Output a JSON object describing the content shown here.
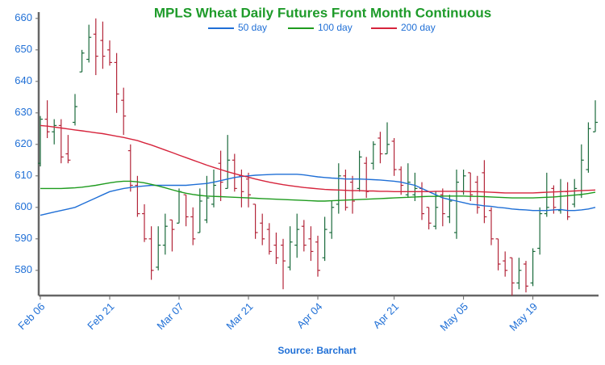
{
  "chart_data": {
    "type": "ohlc",
    "title": "MPLS Wheat Daily Futures Front Month Continuous",
    "source": "Source: Barchart",
    "legend": "top",
    "up_color": "#1b6b3c",
    "down_color": "#b3263a",
    "categories": [
      "Feb 06",
      null,
      null,
      null,
      null,
      null,
      null,
      null,
      null,
      null,
      "Feb 21",
      null,
      null,
      null,
      null,
      null,
      null,
      null,
      null,
      null,
      "Mar 07",
      null,
      null,
      null,
      null,
      null,
      null,
      null,
      null,
      null,
      "Mar 21",
      null,
      null,
      null,
      null,
      null,
      null,
      null,
      null,
      null,
      "Apr 04",
      null,
      null,
      null,
      null,
      null,
      null,
      null,
      null,
      null,
      null,
      "Apr 21",
      null,
      null,
      null,
      null,
      null,
      null,
      null,
      null,
      null,
      "May 05",
      null,
      null,
      null,
      null,
      null,
      null,
      null,
      null,
      null,
      "May 19",
      null,
      null,
      null,
      null,
      null,
      null,
      null,
      null,
      null
    ],
    "open": [
      614,
      628,
      624,
      626,
      617,
      627,
      643,
      647,
      655,
      653,
      650,
      646,
      634,
      618,
      607,
      598,
      590,
      581,
      588,
      596,
      595,
      604,
      597,
      592,
      596,
      601,
      614,
      606,
      615,
      610,
      609,
      601,
      595,
      593,
      588,
      588,
      581,
      588,
      594,
      590,
      589,
      584,
      592,
      601,
      610,
      608,
      606,
      614,
      614,
      622,
      617,
      621,
      612,
      604,
      604,
      606,
      600,
      594,
      604,
      597,
      592,
      605,
      611,
      608,
      611,
      599,
      590,
      583,
      584,
      576,
      582,
      576,
      587,
      598,
      606,
      599,
      605,
      601,
      604,
      612,
      624
    ],
    "high": [
      629,
      634,
      628,
      628,
      623,
      636,
      650,
      658,
      660,
      659,
      653,
      649,
      638,
      620,
      610,
      601,
      594,
      594,
      598,
      596,
      606,
      604,
      600,
      606,
      610,
      612,
      618,
      623,
      617,
      612,
      611,
      601,
      598,
      595,
      592,
      590,
      594,
      598,
      596,
      594,
      591,
      597,
      602,
      614,
      612,
      610,
      618,
      616,
      621,
      624,
      627,
      622,
      613,
      614,
      611,
      608,
      600,
      605,
      606,
      604,
      612,
      612,
      611,
      610,
      615,
      600,
      590,
      586,
      584,
      584,
      583,
      587,
      600,
      611,
      607,
      609,
      608,
      609,
      620,
      627,
      634
    ],
    "low": [
      613,
      622,
      620,
      614,
      614,
      626,
      643,
      646,
      642,
      644,
      645,
      630,
      623,
      605,
      597,
      589,
      577,
      580,
      585,
      586,
      595,
      594,
      588,
      592,
      595,
      600,
      602,
      606,
      605,
      600,
      600,
      590,
      588,
      585,
      582,
      574,
      580,
      584,
      586,
      583,
      578,
      583,
      590,
      598,
      599,
      598,
      605,
      603,
      612,
      614,
      617,
      610,
      604,
      603,
      602,
      596,
      593,
      593,
      594,
      595,
      590,
      604,
      602,
      598,
      595,
      588,
      580,
      578,
      572,
      574,
      573,
      575,
      585,
      597,
      598,
      598,
      596,
      600,
      603,
      611,
      624
    ],
    "close": [
      628,
      624,
      626,
      616,
      615,
      632,
      649,
      654,
      648,
      648,
      646,
      636,
      629,
      607,
      598,
      590,
      580,
      588,
      594,
      593,
      605,
      597,
      590,
      602,
      603,
      607,
      608,
      615,
      606,
      605,
      604,
      592,
      590,
      586,
      584,
      583,
      589,
      593,
      588,
      586,
      580,
      593,
      600,
      610,
      600,
      602,
      616,
      605,
      620,
      617,
      620,
      612,
      607,
      608,
      606,
      598,
      595,
      600,
      598,
      602,
      608,
      610,
      604,
      600,
      597,
      590,
      582,
      580,
      576,
      580,
      575,
      586,
      598,
      600,
      600,
      605,
      597,
      606,
      615,
      625,
      627
    ],
    "series": [
      {
        "name": "50 day",
        "color": "#1f6fd6",
        "values": [
          597.5,
          598,
          598.5,
          599,
          599.5,
          600,
          601,
          602,
          603,
          604,
          605,
          605.5,
          606,
          606.3,
          606.6,
          606.8,
          607,
          607,
          607,
          607,
          607,
          607,
          607.2,
          607.4,
          607.6,
          608,
          608.5,
          609,
          609.5,
          609.8,
          610,
          610.2,
          610.3,
          610.4,
          610.5,
          610.5,
          610.5,
          610.5,
          610.3,
          610,
          609.7,
          609.5,
          609.3,
          609.2,
          609,
          609,
          609,
          608.9,
          608.8,
          608.7,
          608.5,
          608.3,
          608,
          607.5,
          607,
          606,
          605,
          604,
          603,
          602.5,
          602,
          601.5,
          601,
          600.8,
          600.5,
          600.3,
          600,
          599.8,
          599.5,
          599.3,
          599.2,
          599,
          599,
          599,
          599.2,
          599.3,
          599,
          599,
          599.2,
          599.5,
          600
        ]
      },
      {
        "name": "100 day",
        "color": "#1e9b1e",
        "values": [
          606,
          606,
          606,
          606,
          606.1,
          606.2,
          606.4,
          606.7,
          607,
          607.4,
          607.8,
          608.1,
          608.3,
          608.3,
          608.1,
          607.8,
          607.3,
          606.8,
          606.2,
          605.6,
          605,
          604.5,
          604.1,
          603.8,
          603.6,
          603.5,
          603.4,
          603.3,
          603.2,
          603.1,
          603,
          602.9,
          602.8,
          602.7,
          602.6,
          602.5,
          602.4,
          602.3,
          602.2,
          602.1,
          602,
          602,
          602.1,
          602.2,
          602.3,
          602.4,
          602.5,
          602.6,
          602.7,
          602.8,
          602.9,
          603,
          603.1,
          603.2,
          603.3,
          603.4,
          603.5,
          603.5,
          603.6,
          603.6,
          603.6,
          603.6,
          603.5,
          603.5,
          603.4,
          603.3,
          603.2,
          603.1,
          603,
          603,
          603,
          603,
          603.1,
          603.2,
          603.3,
          603.5,
          603.7,
          603.9,
          604.1,
          604.4,
          604.8
        ]
      },
      {
        "name": "200 day",
        "color": "#d6243c",
        "values": [
          626,
          625.8,
          625.5,
          625.2,
          624.9,
          624.6,
          624.3,
          624,
          623.7,
          623.4,
          623,
          622.6,
          622.2,
          621.7,
          621.2,
          620.5,
          619.8,
          619,
          618.2,
          617.4,
          616.6,
          615.8,
          615,
          614.2,
          613.4,
          612.7,
          612,
          611.3,
          610.7,
          610.1,
          609.6,
          609,
          608.5,
          608,
          607.6,
          607.2,
          606.9,
          606.6,
          606.3,
          606.1,
          605.9,
          605.7,
          605.6,
          605.5,
          605.4,
          605.3,
          605.3,
          605.2,
          605.2,
          605.1,
          605.1,
          605,
          605,
          605,
          605,
          605,
          605,
          605.1,
          605.1,
          605.1,
          605.1,
          605.1,
          605,
          605,
          604.9,
          604.8,
          604.7,
          604.6,
          604.6,
          604.6,
          604.6,
          604.6,
          604.7,
          604.8,
          604.9,
          605,
          605.1,
          605.2,
          605.3,
          605.4,
          605.5
        ]
      }
    ],
    "ylim": [
      572,
      662
    ],
    "yticks": [
      580,
      590,
      600,
      610,
      620,
      630,
      640,
      650,
      660
    ],
    "grid": false
  }
}
